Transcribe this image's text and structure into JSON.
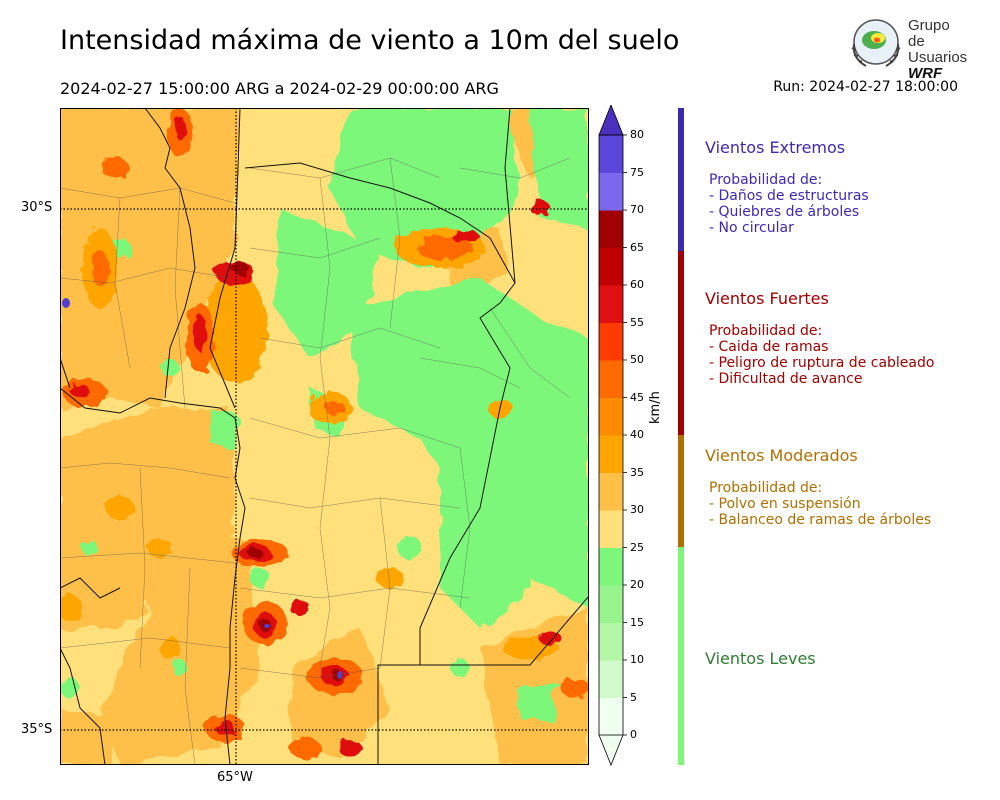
{
  "header": {
    "title": "Intensidad máxima de viento a 10m del suelo",
    "period": "2024-02-27 15:00:00 ARG  a  2024-02-29 00:00:00 ARG",
    "run": "Run: 2024-02-27 18:00:00"
  },
  "logo": {
    "line1": "Grupo de",
    "line2": "Usuarios",
    "line3": "WRF"
  },
  "map": {
    "lat_labels": [
      "30°S",
      "35°S"
    ],
    "lon_labels": [
      "65°W"
    ],
    "colors": {
      "light_green": "#7df77a",
      "pale_yellow": "#ffe07a",
      "light_orange": "#ffc048",
      "orange": "#ffa500",
      "dark_orange": "#ff6a00",
      "red": "#e01010",
      "dark_red": "#a00000",
      "purple": "#5040d0"
    }
  },
  "colorbar": {
    "unit": "km/h",
    "ticks": [
      "0",
      "5",
      "10",
      "15",
      "20",
      "25",
      "30",
      "35",
      "40",
      "45",
      "50",
      "55",
      "60",
      "65",
      "70",
      "75",
      "80"
    ],
    "colors": [
      "#f0fff0",
      "#d2fbcb",
      "#b4f7a6",
      "#98f58e",
      "#7df77a",
      "#ffe07a",
      "#ffc048",
      "#ffa500",
      "#ff8c00",
      "#ff6a00",
      "#ff3c00",
      "#e01010",
      "#c00000",
      "#a00000",
      "#7b68ee",
      "#5a46d8",
      "#4b30c0"
    ]
  },
  "categories": [
    {
      "title": "Vientos Extremos",
      "color": "#3a2ab0",
      "desc": [
        "Probabilidad de:",
        "- Daños de estructuras",
        "- Quiebres de árboles",
        "- No circular"
      ]
    },
    {
      "title": "Vientos Fuertes",
      "color": "#a00000",
      "desc": [
        "Probabilidad de:",
        "- Caida de ramas",
        "- Peligro de ruptura de cableado",
        "- Dificultad de avance"
      ]
    },
    {
      "title": "Vientos Moderados",
      "color": "#b07000",
      "desc": [
        "Probabilidad de:",
        "- Polvo en suspensión",
        "- Balanceo de ramas de árboles"
      ]
    },
    {
      "title": "Vientos Leves",
      "color": "#2e7d32",
      "desc": []
    }
  ]
}
